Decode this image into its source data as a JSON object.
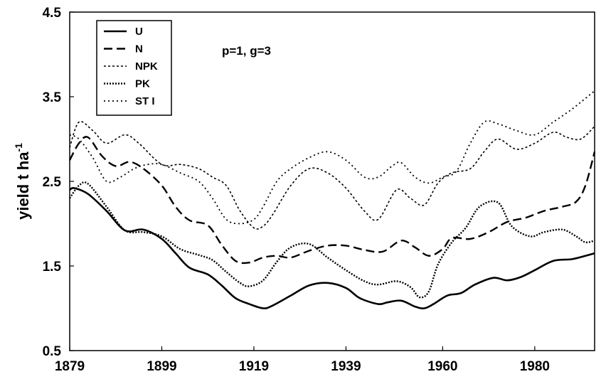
{
  "chart_data": {
    "type": "line",
    "title": "",
    "annotation": "p=1, g=3",
    "ylabel": {
      "main": "yield t ha",
      "superscript": "-1"
    },
    "xlabel": "",
    "xlim": [
      1879,
      1993
    ],
    "ylim": [
      0.5,
      4.5
    ],
    "x_ticks": [
      1879,
      1899,
      1919,
      1939,
      1960,
      1980
    ],
    "x_tick_labels": [
      "1879",
      "1899",
      "1919",
      "1939",
      "1960",
      "1980"
    ],
    "y_ticks": [
      0.5,
      1.5,
      2.5,
      3.5,
      4.5
    ],
    "y_tick_labels": [
      "0.5",
      "1.5",
      "2.5",
      "3.5",
      "4.5"
    ],
    "grid": false,
    "legend_position": "top-left",
    "series": [
      {
        "name": "U",
        "style": "solid",
        "x": [
          1879,
          1880,
          1883,
          1887,
          1891,
          1895,
          1899,
          1902,
          1905,
          1909,
          1912,
          1915,
          1918,
          1921,
          1923,
          1927,
          1931,
          1935,
          1939,
          1942,
          1946,
          1948,
          1951,
          1954,
          1956,
          1958,
          1961,
          1964,
          1967,
          1971,
          1974,
          1977,
          1980,
          1984,
          1988,
          1991,
          1993
        ],
        "values": [
          2.4,
          2.42,
          2.35,
          2.15,
          1.92,
          1.93,
          1.82,
          1.65,
          1.48,
          1.4,
          1.27,
          1.12,
          1.05,
          1.0,
          1.03,
          1.15,
          1.27,
          1.3,
          1.24,
          1.12,
          1.05,
          1.07,
          1.09,
          1.02,
          1.0,
          1.05,
          1.15,
          1.18,
          1.28,
          1.36,
          1.33,
          1.37,
          1.45,
          1.56,
          1.58,
          1.62,
          1.65
        ]
      },
      {
        "name": "N",
        "style": "dashed",
        "x": [
          1879,
          1881,
          1883,
          1886,
          1889,
          1892,
          1895,
          1899,
          1902,
          1905,
          1909,
          1912,
          1915,
          1918,
          1921,
          1924,
          1927,
          1931,
          1935,
          1939,
          1943,
          1947,
          1951,
          1954,
          1957,
          1960,
          1962,
          1966,
          1970,
          1974,
          1978,
          1982,
          1986,
          1989,
          1991,
          1993
        ],
        "values": [
          2.75,
          2.95,
          3.02,
          2.8,
          2.68,
          2.73,
          2.65,
          2.45,
          2.2,
          2.04,
          1.98,
          1.75,
          1.56,
          1.54,
          1.6,
          1.62,
          1.6,
          1.68,
          1.74,
          1.74,
          1.69,
          1.67,
          1.8,
          1.72,
          1.62,
          1.7,
          1.83,
          1.82,
          1.9,
          2.02,
          2.07,
          2.15,
          2.2,
          2.26,
          2.45,
          2.85
        ]
      },
      {
        "name": "NPK",
        "style": "dotted-fine",
        "x": [
          1879,
          1881,
          1884,
          1887,
          1891,
          1894,
          1899,
          1903,
          1907,
          1910,
          1913,
          1916,
          1919,
          1921,
          1923,
          1927,
          1931,
          1935,
          1939,
          1943,
          1946,
          1950,
          1953,
          1956,
          1959,
          1962,
          1966,
          1969,
          1972,
          1976,
          1980,
          1984,
          1987,
          1990,
          1993
        ],
        "values": [
          2.9,
          3.2,
          3.1,
          2.95,
          3.05,
          2.95,
          2.7,
          2.7,
          2.65,
          2.55,
          2.45,
          2.15,
          1.95,
          1.97,
          2.1,
          2.45,
          2.65,
          2.6,
          2.42,
          2.15,
          2.05,
          2.4,
          2.3,
          2.22,
          2.48,
          2.6,
          2.65,
          2.85,
          3.0,
          2.88,
          2.95,
          3.08,
          3.02,
          3.0,
          3.15
        ]
      },
      {
        "name": "PK",
        "style": "dotted",
        "x": [
          1879,
          1881,
          1883,
          1887,
          1891,
          1895,
          1899,
          1903,
          1907,
          1910,
          1913,
          1916,
          1918,
          1921,
          1924,
          1927,
          1931,
          1935,
          1939,
          1943,
          1946,
          1950,
          1953,
          1955,
          1957,
          1959,
          1962,
          1965,
          1968,
          1972,
          1975,
          1979,
          1982,
          1986,
          1989,
          1991,
          1993
        ],
        "values": [
          2.3,
          2.45,
          2.47,
          2.2,
          1.92,
          1.9,
          1.85,
          1.7,
          1.63,
          1.57,
          1.43,
          1.3,
          1.26,
          1.33,
          1.55,
          1.72,
          1.76,
          1.6,
          1.45,
          1.32,
          1.28,
          1.32,
          1.25,
          1.13,
          1.2,
          1.52,
          1.78,
          1.95,
          2.2,
          2.25,
          1.97,
          1.85,
          1.9,
          1.93,
          1.85,
          1.78,
          1.8
        ]
      },
      {
        "name": "ST I",
        "style": "dotted-wide",
        "x": [
          1879,
          1881,
          1884,
          1887,
          1890,
          1893,
          1896,
          1899,
          1903,
          1907,
          1910,
          1913,
          1916,
          1919,
          1921,
          1924,
          1927,
          1931,
          1935,
          1939,
          1943,
          1946,
          1949,
          1951,
          1954,
          1957,
          1960,
          1963,
          1966,
          1969,
          1972,
          1976,
          1980,
          1984,
          1988,
          1991,
          1993
        ],
        "values": [
          3.05,
          3.0,
          2.78,
          2.5,
          2.55,
          2.65,
          2.7,
          2.7,
          2.6,
          2.5,
          2.3,
          2.05,
          2.0,
          2.05,
          2.2,
          2.5,
          2.65,
          2.78,
          2.85,
          2.75,
          2.55,
          2.55,
          2.68,
          2.72,
          2.55,
          2.48,
          2.55,
          2.62,
          2.95,
          3.2,
          3.18,
          3.1,
          3.05,
          3.2,
          3.35,
          3.48,
          3.57
        ]
      }
    ]
  }
}
